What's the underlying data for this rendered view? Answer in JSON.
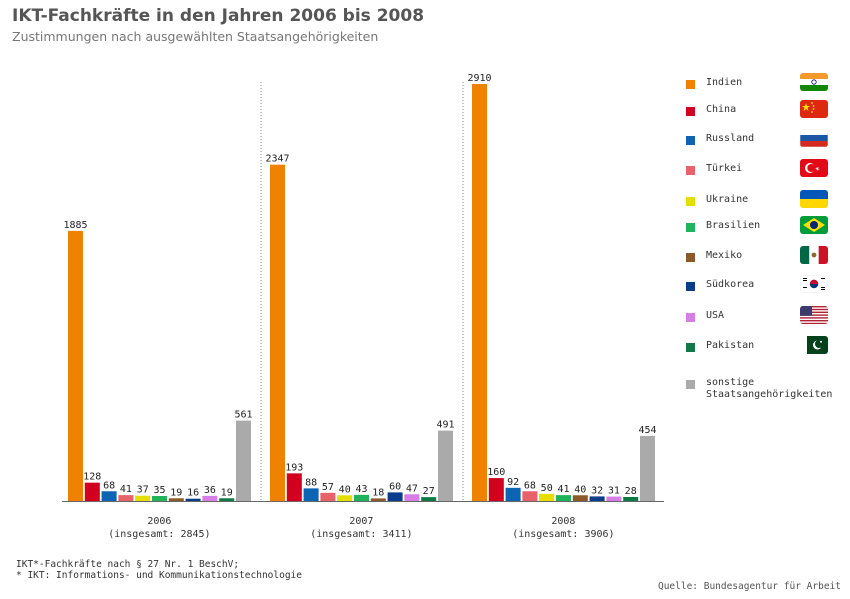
{
  "title": "IKT-Fachkräfte in den Jahren 2006 bis 2008",
  "subtitle": "Zustimmungen nach ausgewählten Staatsangehörigkeiten",
  "footnotes": [
    "IKT*-Fachkräfte nach § 27 Nr. 1 BeschV;",
    "* IKT: Informations- und Kommunikationstechnologie"
  ],
  "source": "Quelle: Bundesagentur für Arbeit",
  "chart_data": {
    "type": "bar",
    "title": "IKT-Fachkräfte in den Jahren 2006 bis 2008",
    "subtitle": "Zustimmungen nach ausgewählten Staatsangehörigkeiten",
    "groups": [
      {
        "year": "2006",
        "total_label": "(insgesamt: 2845)"
      },
      {
        "year": "2007",
        "total_label": "(insgesamt: 3411)"
      },
      {
        "year": "2008",
        "total_label": "(insgesamt: 3906)"
      }
    ],
    "ylim": [
      0,
      2910
    ],
    "grid": false,
    "legend_position": "right",
    "series": [
      {
        "name": "Indien",
        "color": "#ef8200",
        "flag": "india",
        "values": [
          1885,
          2347,
          2910
        ]
      },
      {
        "name": "China",
        "color": "#d2001e",
        "flag": "china",
        "values": [
          128,
          193,
          160
        ]
      },
      {
        "name": "Russland",
        "color": "#0c64b4",
        "flag": "russia",
        "values": [
          68,
          88,
          92
        ]
      },
      {
        "name": "Türkei",
        "color": "#e8626a",
        "flag": "turkey",
        "values": [
          41,
          57,
          68
        ]
      },
      {
        "name": "Ukraine",
        "color": "#e6de00",
        "flag": "ukraine",
        "values": [
          37,
          40,
          50
        ]
      },
      {
        "name": "Brasilien",
        "color": "#1fb35a",
        "flag": "brazil",
        "values": [
          35,
          43,
          41
        ]
      },
      {
        "name": "Mexiko",
        "color": "#8c5a2a",
        "flag": "mexico",
        "values": [
          19,
          18,
          40
        ]
      },
      {
        "name": "Südkorea",
        "color": "#0a3c8c",
        "flag": "south-korea",
        "values": [
          16,
          60,
          32
        ]
      },
      {
        "name": "USA",
        "color": "#d67ee6",
        "flag": "usa",
        "values": [
          36,
          47,
          31
        ]
      },
      {
        "name": "Pakistan",
        "color": "#0f7a45",
        "flag": "pakistan",
        "values": [
          19,
          27,
          28
        ]
      },
      {
        "name": "sonstige Staatsangehörigkeiten",
        "label_lines": [
          "sonstige",
          "Staatsangehörigkeiten"
        ],
        "color": "#aaaaaa",
        "flag": "",
        "values": [
          561,
          491,
          454
        ]
      }
    ]
  }
}
